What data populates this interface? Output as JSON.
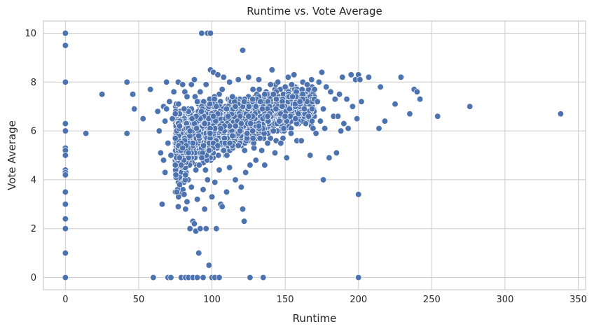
{
  "chart_data": {
    "type": "scatter",
    "title": "Runtime vs. Vote Average",
    "xlabel": "Runtime",
    "ylabel": "Vote Average",
    "xlim": [
      -15,
      355
    ],
    "ylim": [
      -0.5,
      10.5
    ],
    "xticks": [
      0,
      50,
      100,
      150,
      200,
      250,
      300,
      350
    ],
    "yticks": [
      0,
      2,
      4,
      6,
      8,
      10
    ],
    "grid": true,
    "color": "#4c72b0",
    "points": [
      [
        0,
        10
      ],
      [
        0,
        9.5
      ],
      [
        0,
        8
      ],
      [
        0,
        6.3
      ],
      [
        0,
        6
      ],
      [
        0,
        5.3
      ],
      [
        0,
        5.2
      ],
      [
        0,
        5
      ],
      [
        0,
        4.4
      ],
      [
        0,
        4.3
      ],
      [
        0,
        4.2
      ],
      [
        0,
        3.5
      ],
      [
        0,
        3
      ],
      [
        0,
        2.4
      ],
      [
        0,
        2
      ],
      [
        0,
        1
      ],
      [
        0,
        0
      ],
      [
        14,
        5.9
      ],
      [
        25,
        7.5
      ],
      [
        42,
        5.9
      ],
      [
        42,
        8
      ],
      [
        46,
        7.5
      ],
      [
        47,
        6.9
      ],
      [
        53,
        6.5
      ],
      [
        58,
        7.7
      ],
      [
        60,
        0
      ],
      [
        63,
        6.8
      ],
      [
        64,
        6.0
      ],
      [
        65,
        5.1
      ],
      [
        66,
        3.0
      ],
      [
        67,
        4.8
      ],
      [
        67,
        7.0
      ],
      [
        68,
        6.4
      ],
      [
        68,
        4.3
      ],
      [
        69,
        8.0
      ],
      [
        69,
        6.9
      ],
      [
        70,
        5.5
      ],
      [
        70,
        0
      ],
      [
        71,
        7.2
      ],
      [
        72,
        0
      ],
      [
        72,
        5.0
      ],
      [
        73,
        6.5
      ],
      [
        74,
        7.6
      ],
      [
        75,
        6.7
      ],
      [
        75,
        5.7
      ],
      [
        76,
        3.5
      ],
      [
        77,
        8.0
      ],
      [
        77,
        2.9
      ],
      [
        78,
        3.8
      ],
      [
        78,
        6.2
      ],
      [
        79,
        4.6
      ],
      [
        79,
        0
      ],
      [
        80,
        7.9
      ],
      [
        80,
        5.3
      ],
      [
        81,
        3.4
      ],
      [
        81,
        6.9
      ],
      [
        82,
        2.8
      ],
      [
        82,
        4.2
      ],
      [
        82,
        0
      ],
      [
        83,
        7.4
      ],
      [
        83,
        3.1
      ],
      [
        84,
        5.1
      ],
      [
        84,
        0
      ],
      [
        85,
        2.0
      ],
      [
        85,
        6.0
      ],
      [
        86,
        7.9
      ],
      [
        86,
        3.7
      ],
      [
        87,
        2.3
      ],
      [
        87,
        5.5
      ],
      [
        87,
        0
      ],
      [
        88,
        8.1
      ],
      [
        88,
        2.2
      ],
      [
        89,
        4.4
      ],
      [
        89,
        1.9
      ],
      [
        90,
        7.2
      ],
      [
        90,
        3.2
      ],
      [
        90,
        0
      ],
      [
        91,
        1.0
      ],
      [
        91,
        5.8
      ],
      [
        92,
        2.0
      ],
      [
        92,
        7.6
      ],
      [
        93,
        10
      ],
      [
        93,
        4.9
      ],
      [
        94,
        3.6
      ],
      [
        94,
        0
      ],
      [
        95,
        6.3
      ],
      [
        95,
        2.8
      ],
      [
        96,
        2.0
      ],
      [
        96,
        7.9
      ],
      [
        97,
        10
      ],
      [
        97,
        4.0
      ],
      [
        98,
        0.5
      ],
      [
        98,
        5.2
      ],
      [
        99,
        10
      ],
      [
        99,
        8.5
      ],
      [
        100,
        0
      ],
      [
        100,
        3.3
      ],
      [
        101,
        6.6
      ],
      [
        101,
        8.4
      ],
      [
        102,
        3.9
      ],
      [
        102,
        0
      ],
      [
        103,
        7.0
      ],
      [
        103,
        2.0
      ],
      [
        104,
        5.4
      ],
      [
        104,
        8.3
      ],
      [
        105,
        0
      ],
      [
        105,
        4.4
      ],
      [
        106,
        6.1
      ],
      [
        106,
        3.0
      ],
      [
        107,
        7.7
      ],
      [
        107,
        2.9
      ],
      [
        108,
        5.2
      ],
      [
        108,
        8.2
      ],
      [
        110,
        3.5
      ],
      [
        110,
        6.9
      ],
      [
        112,
        4.5
      ],
      [
        112,
        8.0
      ],
      [
        114,
        5.8
      ],
      [
        114,
        7.4
      ],
      [
        116,
        4.0
      ],
      [
        116,
        7.0
      ],
      [
        118,
        5.4
      ],
      [
        118,
        8.1
      ],
      [
        120,
        3.7
      ],
      [
        120,
        6.3
      ],
      [
        121,
        9.3
      ],
      [
        121,
        2.8
      ],
      [
        122,
        2.3
      ],
      [
        122,
        7.2
      ],
      [
        123,
        4.3
      ],
      [
        124,
        5.9
      ],
      [
        125,
        8.2
      ],
      [
        125,
        6.6
      ],
      [
        126,
        0
      ],
      [
        126,
        4.6
      ],
      [
        128,
        7.7
      ],
      [
        128,
        5.7
      ],
      [
        130,
        4.8
      ],
      [
        130,
        7.0
      ],
      [
        132,
        6.2
      ],
      [
        132,
        8.1
      ],
      [
        134,
        5.2
      ],
      [
        135,
        0
      ],
      [
        136,
        4.6
      ],
      [
        136,
        7.5
      ],
      [
        138,
        6.6
      ],
      [
        138,
        5.5
      ],
      [
        140,
        7.9
      ],
      [
        141,
        8.5
      ],
      [
        142,
        6.0
      ],
      [
        143,
        5.1
      ],
      [
        144,
        7.3
      ],
      [
        145,
        8.0
      ],
      [
        146,
        6.4
      ],
      [
        147,
        5.5
      ],
      [
        148,
        7.0
      ],
      [
        149,
        6.1
      ],
      [
        150,
        7.8
      ],
      [
        151,
        4.9
      ],
      [
        152,
        8.2
      ],
      [
        153,
        6.9
      ],
      [
        154,
        5.9
      ],
      [
        155,
        7.4
      ],
      [
        156,
        8.3
      ],
      [
        157,
        6.5
      ],
      [
        158,
        5.6
      ],
      [
        160,
        7.2
      ],
      [
        161,
        5.6
      ],
      [
        162,
        8.0
      ],
      [
        163,
        6.9
      ],
      [
        164,
        6.3
      ],
      [
        165,
        7.9
      ],
      [
        166,
        6.6
      ],
      [
        167,
        5.0
      ],
      [
        168,
        8.1
      ],
      [
        169,
        6.1
      ],
      [
        170,
        7.7
      ],
      [
        171,
        5.9
      ],
      [
        172,
        7.2
      ],
      [
        173,
        8.0
      ],
      [
        174,
        6.4
      ],
      [
        175,
        8.4
      ],
      [
        176,
        4.0
      ],
      [
        176,
        6.9
      ],
      [
        177,
        6.1
      ],
      [
        178,
        7.8
      ],
      [
        180,
        4.9
      ],
      [
        181,
        7.6
      ],
      [
        183,
        6.6
      ],
      [
        184,
        7.3
      ],
      [
        185,
        5.1
      ],
      [
        186,
        6.6
      ],
      [
        187,
        7.5
      ],
      [
        188,
        6.0
      ],
      [
        189,
        8.2
      ],
      [
        190,
        6.3
      ],
      [
        192,
        7.3
      ],
      [
        193,
        6.1
      ],
      [
        195,
        8.3
      ],
      [
        196,
        7.0
      ],
      [
        198,
        8.1
      ],
      [
        199,
        6.5
      ],
      [
        200,
        8.3
      ],
      [
        200,
        3.4
      ],
      [
        200,
        0
      ],
      [
        201,
        8.1
      ],
      [
        202,
        7.2
      ],
      [
        207,
        8.2
      ],
      [
        214,
        6.1
      ],
      [
        215,
        7.8
      ],
      [
        218,
        6.4
      ],
      [
        225,
        7.1
      ],
      [
        229,
        8.2
      ],
      [
        235,
        6.7
      ],
      [
        238,
        7.7
      ],
      [
        240,
        7.6
      ],
      [
        242,
        7.3
      ],
      [
        254,
        6.6
      ],
      [
        276,
        7.0
      ],
      [
        338,
        6.7
      ]
    ]
  }
}
